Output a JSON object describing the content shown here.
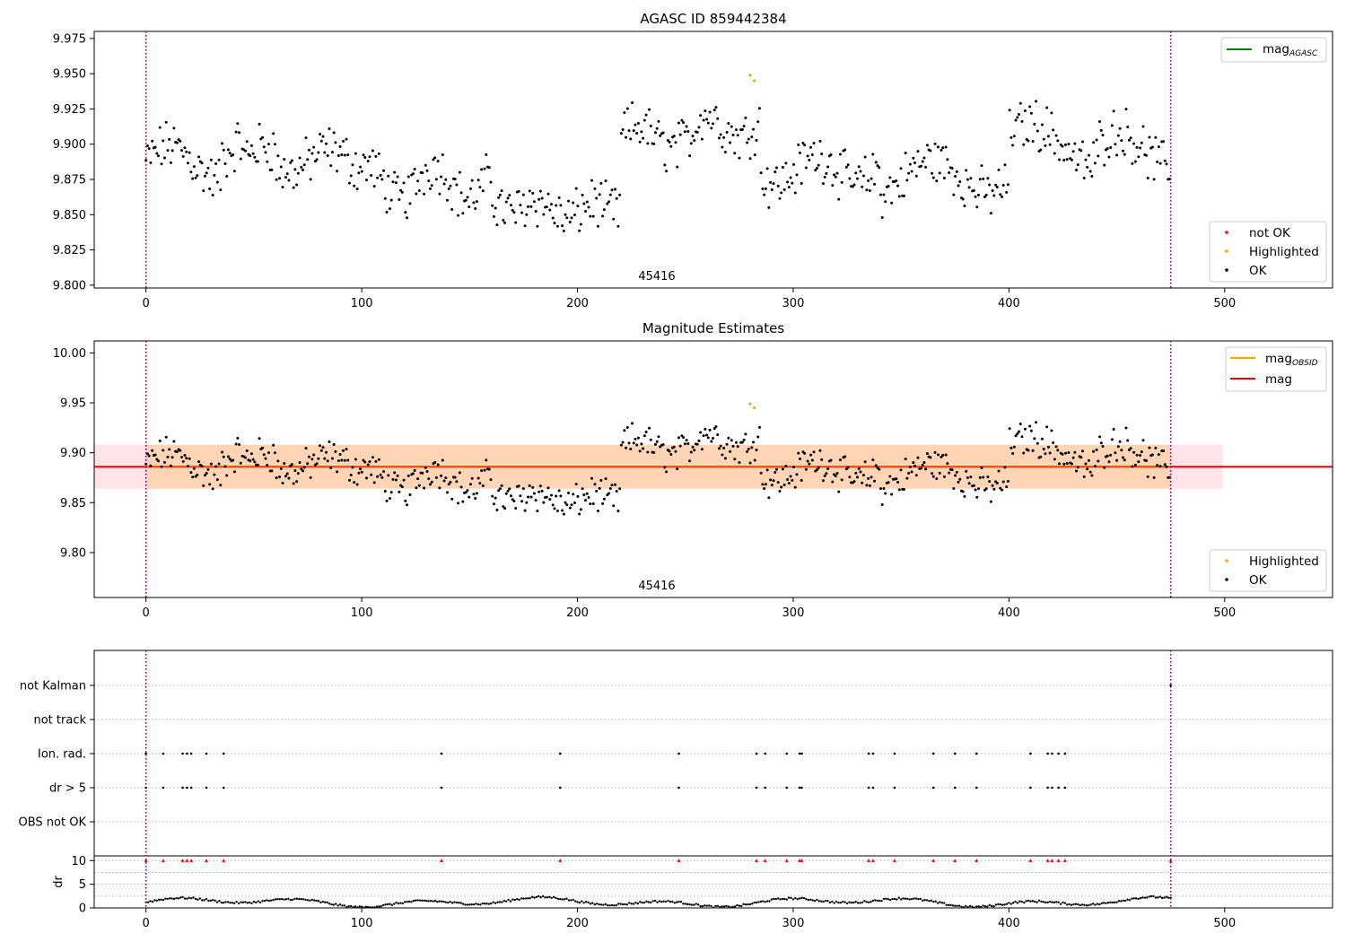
{
  "chart_data": [
    {
      "type": "scatter",
      "title": "AGASC ID 859442384",
      "xlim": [
        -24,
        550
      ],
      "ylim": [
        9.798,
        9.98
      ],
      "xticks": [
        0,
        100,
        200,
        300,
        400,
        500
      ],
      "yticks": [
        9.8,
        9.825,
        9.85,
        9.875,
        9.9,
        9.925,
        9.95,
        9.975
      ],
      "ytick_labels": [
        "9.800",
        "9.825",
        "9.850",
        "9.875",
        "9.900",
        "9.925",
        "9.950",
        "9.975"
      ],
      "obsid_label": "45416",
      "obsid_label_x": 237,
      "vlines": [
        0,
        475
      ],
      "line_legend": {
        "main": "mag",
        "sub": "AGASC",
        "color": "#008000"
      },
      "point_legend": [
        {
          "label": "not OK",
          "color": "#ff0000"
        },
        {
          "label": "Highlighted",
          "color": "#ffa500"
        },
        {
          "label": "OK",
          "color": "#000000"
        }
      ],
      "highlighted_points": [
        [
          280,
          9.949
        ],
        [
          282,
          9.945
        ]
      ]
    },
    {
      "type": "scatter",
      "title": "Magnitude Estimates",
      "xlim": [
        -24,
        550
      ],
      "ylim": [
        9.755,
        10.012
      ],
      "xticks": [
        0,
        100,
        200,
        300,
        400,
        500
      ],
      "yticks": [
        9.8,
        9.85,
        9.9,
        9.95,
        10.0
      ],
      "ytick_labels": [
        "9.80",
        "9.85",
        "9.90",
        "9.95",
        "10.00"
      ],
      "obsid_label": "45416",
      "obsid_label_x": 237,
      "vlines": [
        0,
        475
      ],
      "mag_line": {
        "y": 9.886,
        "x": [
          -24,
          550
        ],
        "color": "#ff0000"
      },
      "mag_band": {
        "y0": 9.864,
        "y1": 9.908,
        "x": [
          -24,
          499
        ],
        "color": "#ffc0cb"
      },
      "obsid_band": {
        "y0": 9.864,
        "y1": 9.908,
        "x": [
          0,
          475
        ],
        "color": "#ffa500"
      },
      "line_legend": [
        {
          "main": "mag",
          "sub": "OBSID",
          "color": "#ffa500"
        },
        {
          "main": "mag",
          "sub": "",
          "color": "#ff0000"
        }
      ],
      "point_legend": [
        {
          "label": "Highlighted",
          "color": "#ffa500"
        },
        {
          "label": "OK",
          "color": "#000000"
        }
      ],
      "highlighted_points": [
        [
          280,
          9.949
        ],
        [
          282,
          9.945
        ]
      ]
    },
    {
      "type": "scatter",
      "xlim": [
        -24,
        550
      ],
      "xticks": [
        0,
        100,
        200,
        300,
        400,
        500
      ],
      "flag_rows": [
        "not Kalman",
        "not track",
        "Ion. rad.",
        "dr > 5",
        "OBS not OK"
      ],
      "flag_events": [
        0,
        8,
        17,
        19,
        21,
        28,
        36,
        137,
        192,
        247,
        283,
        287,
        297,
        303,
        304,
        335,
        337,
        347,
        365,
        375,
        385,
        410,
        418,
        420,
        423,
        426
      ],
      "not_kalman_events": [
        475
      ],
      "dr_ylabel": "dr",
      "dr_ylim": [
        0,
        11
      ],
      "dr_yticks": [
        0,
        5,
        10
      ],
      "dr_gridlines": [
        2.5,
        5,
        7.5,
        10
      ],
      "dr_marker_level": 10,
      "vlines": [
        0,
        475
      ]
    }
  ]
}
